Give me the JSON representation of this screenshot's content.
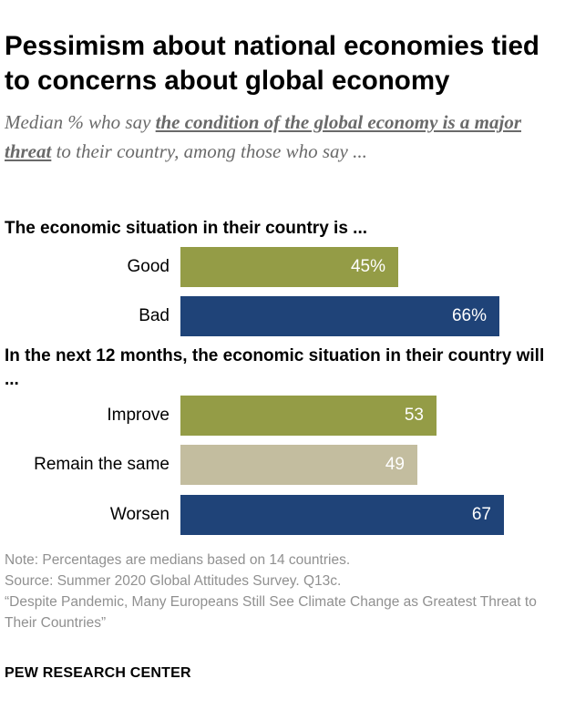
{
  "chart_data": {
    "type": "bar",
    "orientation": "horizontal",
    "title": "Pessimism about national economies tied to concerns about global economy",
    "subtitle": {
      "prefix": "Median % who say ",
      "emphasis": "the condition of the global economy is a major threat",
      "suffix": " to their country, among those who say ..."
    },
    "xlim": [
      0,
      100
    ],
    "groups": [
      {
        "heading": "The economic situation in their country is ...",
        "bars": [
          {
            "label": "Good",
            "value": 45,
            "display": "45%",
            "color": "#949c46"
          },
          {
            "label": "Bad",
            "value": 66,
            "display": "66%",
            "color": "#1f4378"
          }
        ]
      },
      {
        "heading": "In the next 12 months, the economic situation in their country will ...",
        "bars": [
          {
            "label": "Improve",
            "value": 53,
            "display": "53",
            "color": "#949c46"
          },
          {
            "label": "Remain the same",
            "value": 49,
            "display": "49",
            "color": "#c3bd9f"
          },
          {
            "label": "Worsen",
            "value": 67,
            "display": "67",
            "color": "#1f4378"
          }
        ]
      }
    ]
  },
  "notes": {
    "note": "Note: Percentages are medians based on 14 countries.",
    "source": "Source: Summer 2020 Global Attitudes Survey. Q13c.",
    "report": "“Despite Pandemic, Many Europeans Still See Climate Change as Greatest Threat to Their Countries”"
  },
  "footer": "PEW RESEARCH CENTER"
}
